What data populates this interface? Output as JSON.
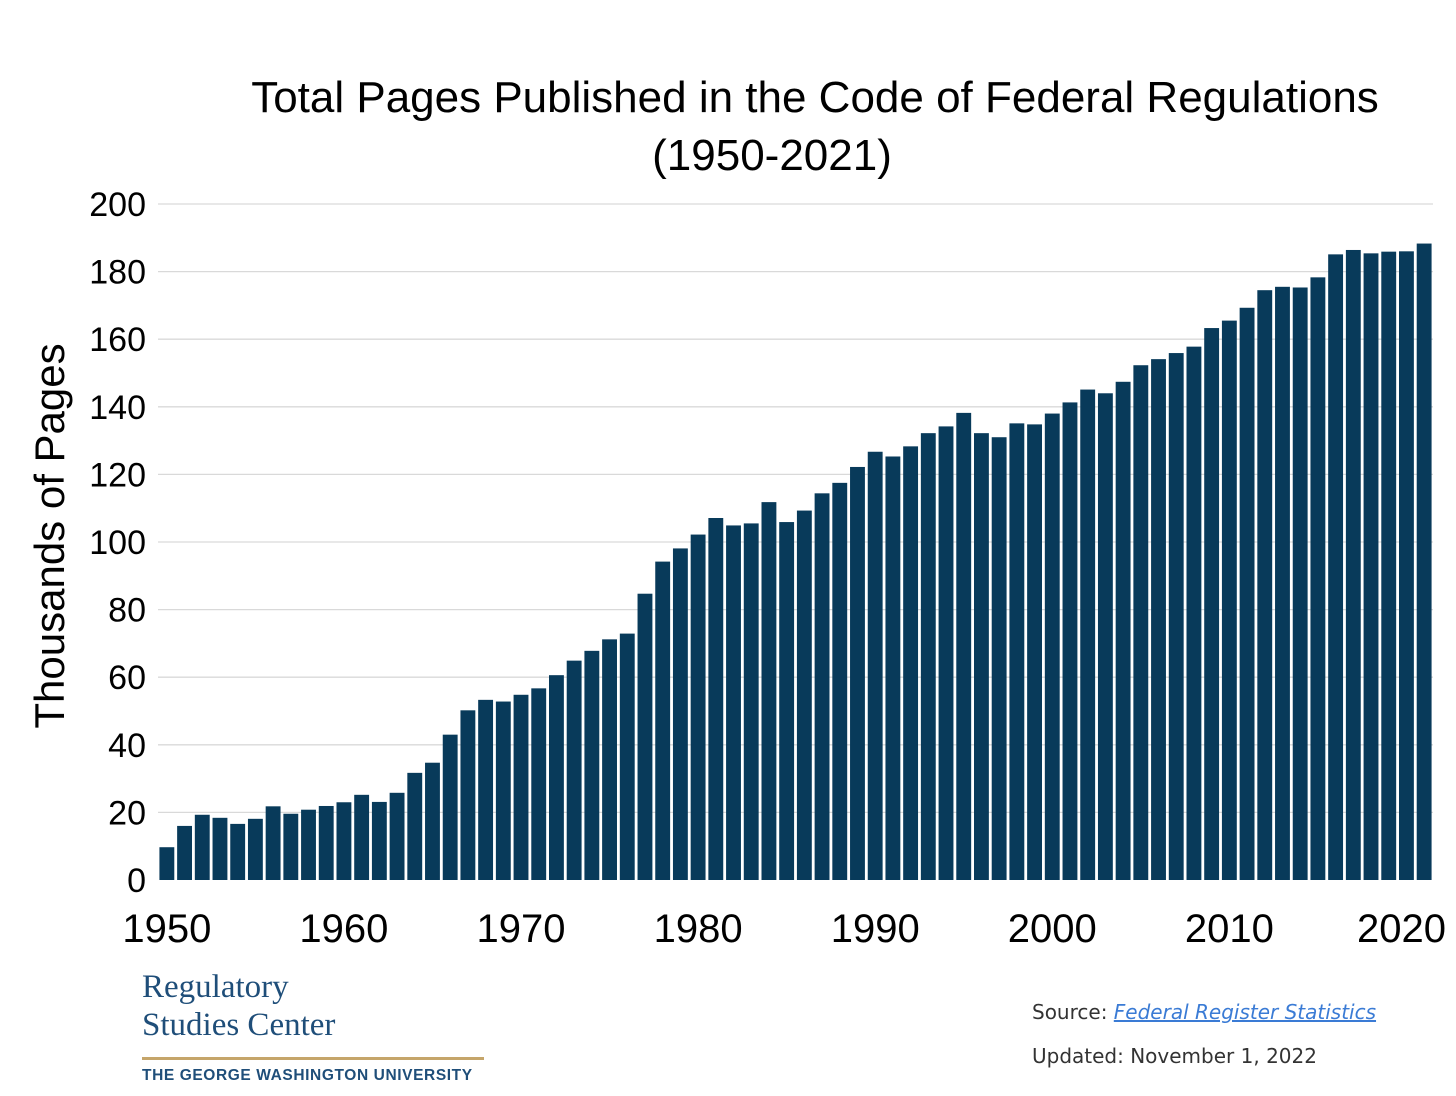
{
  "chart_data": {
    "type": "bar",
    "title": "Total Pages Published in the Code of Federal Regulations",
    "subtitle": "(1950-2021)",
    "xlabel": "",
    "ylabel": "Thousands of Pages",
    "ylim": [
      0,
      200
    ],
    "yticks": [
      0,
      20,
      40,
      60,
      80,
      100,
      120,
      140,
      160,
      180,
      200
    ],
    "xticks": [
      1950,
      1960,
      1970,
      1980,
      1990,
      2000,
      2010,
      2020
    ],
    "grid": true,
    "bar_color": "#083a5a",
    "categories": [
      1950,
      1951,
      1952,
      1953,
      1954,
      1955,
      1956,
      1957,
      1958,
      1959,
      1960,
      1961,
      1962,
      1963,
      1964,
      1965,
      1966,
      1967,
      1968,
      1969,
      1970,
      1971,
      1972,
      1973,
      1974,
      1975,
      1976,
      1977,
      1978,
      1979,
      1980,
      1981,
      1982,
      1983,
      1984,
      1985,
      1986,
      1987,
      1988,
      1989,
      1990,
      1991,
      1992,
      1993,
      1994,
      1995,
      1996,
      1997,
      1998,
      1999,
      2000,
      2001,
      2002,
      2003,
      2004,
      2005,
      2006,
      2007,
      2008,
      2009,
      2010,
      2011,
      2012,
      2013,
      2014,
      2015,
      2016,
      2017,
      2018,
      2019,
      2020,
      2021
    ],
    "values": [
      9.7,
      16.0,
      19.3,
      18.4,
      16.6,
      18.1,
      21.8,
      19.6,
      20.8,
      21.9,
      23.0,
      25.2,
      23.1,
      25.8,
      31.7,
      34.7,
      43.0,
      50.2,
      53.3,
      52.8,
      54.8,
      56.7,
      60.6,
      64.9,
      67.8,
      71.2,
      72.9,
      84.7,
      94.2,
      98.1,
      102.2,
      107.1,
      104.9,
      105.5,
      111.8,
      105.9,
      109.3,
      114.4,
      117.5,
      122.2,
      126.7,
      125.3,
      128.3,
      132.2,
      134.2,
      138.2,
      132.2,
      131.0,
      135.1,
      134.8,
      138.0,
      141.3,
      145.1,
      144.0,
      147.4,
      152.3,
      154.1,
      155.9,
      157.8,
      163.3,
      165.5,
      169.3,
      174.5,
      175.5,
      175.3,
      178.3,
      185.1,
      186.4,
      185.4,
      185.9,
      186.0,
      188.3
    ]
  },
  "branding": {
    "logo_line1": "Regulatory",
    "logo_line2": "Studies Center",
    "university": "THE GEORGE WASHINGTON UNIVERSITY",
    "logo_color": "#1f4e79",
    "rule_color": "#c5a56a"
  },
  "footer": {
    "source_prefix": "Source:",
    "source_link": "Federal Register Statistics",
    "updated": "Updated: November 1, 2022"
  }
}
